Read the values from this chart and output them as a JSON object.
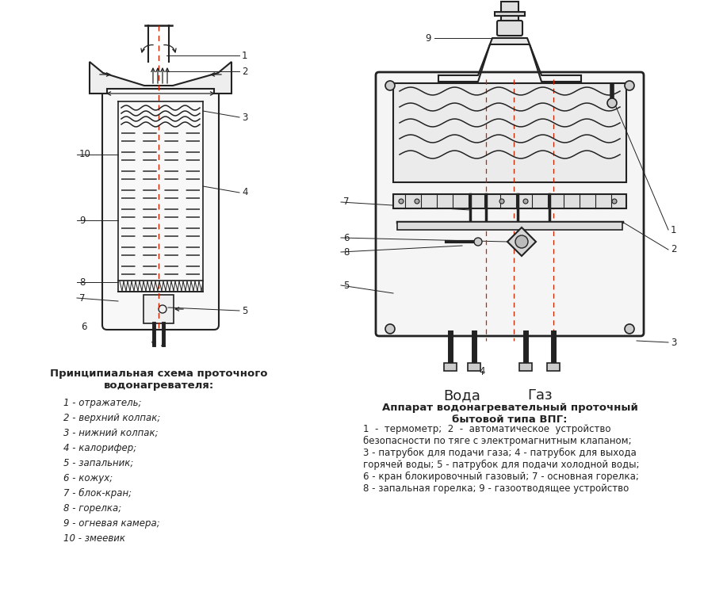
{
  "bg_color": "#ffffff",
  "fig_width": 8.88,
  "fig_height": 7.47,
  "left_title": "Принципиальная схема проточного\nводонагревателя:",
  "left_items": [
    "1 - отражатель;",
    "2 - верхний колпак;",
    "3 - нижний колпак;",
    "4 - калорифер;",
    "5 - запальник;",
    "6 - кожух;",
    "7 - блок-кран;",
    "8 - горелка;",
    "9 - огневая камера;",
    "10 - змеевик"
  ],
  "right_title": "Аппарат водонагревательный проточный\nбытовой типа ВПГ:",
  "right_text": "1  -  термометр;  2  -  автоматическое  устройство\nбезопасности по тяге с электромагнитным клапаном;\n3 - патрубок для подачи газа; 4 - патрубок для выхода\nгорячей воды; 5 - патрубок для подачи холодной воды;\n6 - кран блокировочный газовый; 7 - основная горелка;\n8 - запальная горелка; 9 - газоотводящее устройство",
  "voda_label": "Вода",
  "gaz_label": "Газ",
  "dashed_color": "#555555",
  "red_dashed": "#cc2200",
  "outline_color": "#222222",
  "label_color": "#222222",
  "arrow_color": "#222222"
}
